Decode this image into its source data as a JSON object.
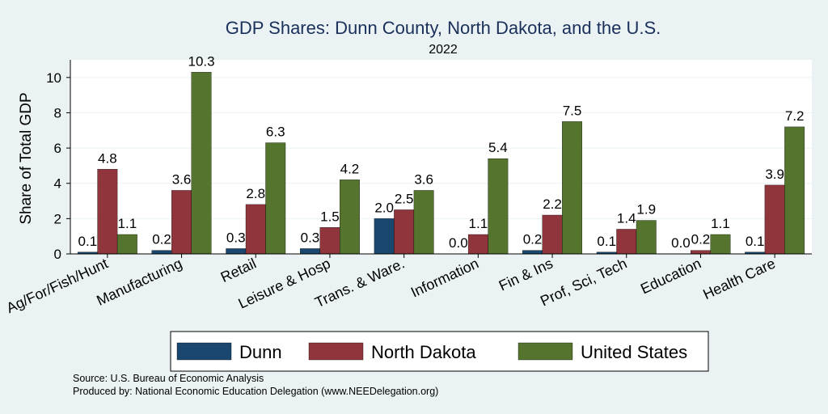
{
  "chart_data": {
    "type": "bar",
    "title": "GDP Shares: Dunn County, North Dakota, and the U.S.",
    "subtitle": "2022",
    "xlabel": "",
    "ylabel": "Share of Total GDP",
    "ylim": [
      0,
      11
    ],
    "yticks": [
      0,
      2,
      4,
      6,
      8,
      10
    ],
    "grid": true,
    "legend_position": "bottom",
    "categories": [
      "Ag/For/Fish/Hunt",
      "Manufacturing",
      "Retail",
      "Leisure & Hosp",
      "Trans. & Ware.",
      "Information",
      "Fin & Ins",
      "Prof, Sci, Tech",
      "Education",
      "Health Care"
    ],
    "series": [
      {
        "name": "Dunn",
        "color": "#1a476f",
        "values": [
          0.1,
          0.2,
          0.3,
          0.3,
          2.0,
          0.0,
          0.2,
          0.1,
          0.0,
          0.1
        ],
        "labels": [
          "0.1",
          "0.2",
          "0.3",
          "0.3",
          "2.0",
          "0.0",
          "0.2",
          "0.1",
          "0.0",
          "0.1"
        ]
      },
      {
        "name": "North Dakota",
        "color": "#90353b",
        "values": [
          4.8,
          3.6,
          2.8,
          1.5,
          2.5,
          1.1,
          2.2,
          1.4,
          0.2,
          3.9
        ],
        "labels": [
          "4.8",
          "3.6",
          "2.8",
          "1.5",
          "2.5",
          "1.1",
          "2.2",
          "1.4",
          "0.2",
          "3.9"
        ]
      },
      {
        "name": "United States",
        "color": "#55752f",
        "values": [
          1.1,
          10.3,
          6.3,
          4.2,
          3.6,
          5.4,
          7.5,
          1.9,
          1.1,
          7.2
        ],
        "labels": [
          "1.1",
          "10.3",
          "6.3",
          "4.2",
          "3.6",
          "5.4",
          "7.5",
          "1.9",
          "1.1",
          "7.2"
        ]
      }
    ]
  },
  "source": {
    "line1": "Source: U.S. Bureau of Economic Analysis",
    "line2": "Produced by: National Economic Education Delegation (www.NEEDelegation.org)"
  },
  "colors": {
    "background": "#eaf2f3",
    "plot_background": "#ffffff",
    "title": "#1a2f5a",
    "grid": "#eaf2f3"
  }
}
